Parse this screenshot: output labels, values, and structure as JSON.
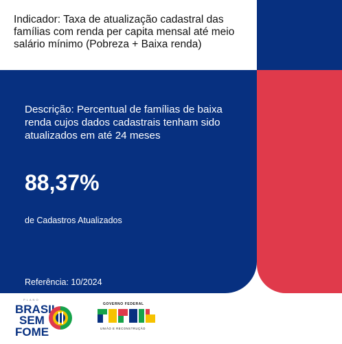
{
  "indicator": {
    "title": "Indicador: Taxa de atualização cadastral das famílias com renda per capita mensal até meio salário mínimo (Pobreza + Baixa renda)",
    "description": "Descrição: Percentual de famílias de baixa renda cujos dados cadastrais tenham sido atualizados em até 24 meses",
    "value": "88,37%",
    "value_label": "de Cadastros Atualizados",
    "reference": "Referência: 10/2024"
  },
  "logos": {
    "brasil_sem_fome": {
      "small_top": "PLANO",
      "line1": "BRASIL",
      "line2": "SEM",
      "line3": "FOME"
    },
    "governo_federal": {
      "top": "GOVERNO FEDERAL",
      "wordmark": "BRASIL",
      "bottom": "UNIÃO E RECONSTRUÇÃO"
    }
  },
  "colors": {
    "navy": "#073080",
    "red": "#e03a4b",
    "green": "#16a34a",
    "yellow": "#f6c200"
  }
}
